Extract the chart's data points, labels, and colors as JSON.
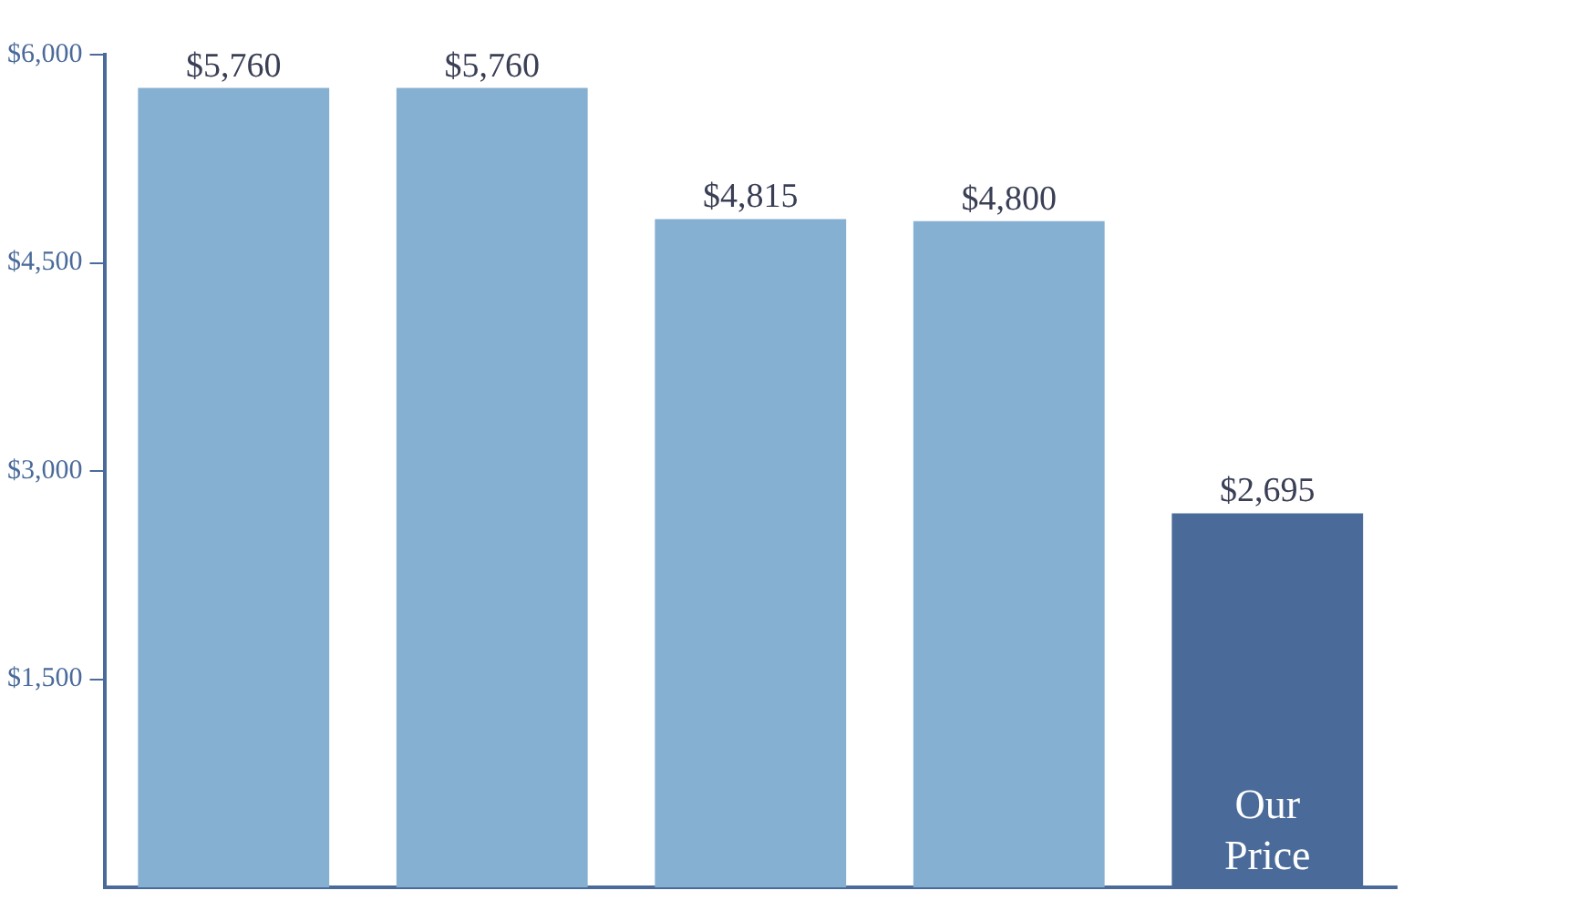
{
  "chart_data": {
    "type": "bar",
    "categories": [
      null,
      null,
      null,
      null,
      "Our Price"
    ],
    "values": [
      5760,
      5760,
      4815,
      4800,
      2695
    ],
    "colors": [
      "#85b0d2",
      "#85b0d2",
      "#85b0d2",
      "#85b0d2",
      "#4a6b9a"
    ],
    "value_labels": [
      "$5,760",
      "$5,760",
      "$4,815",
      "$4,800",
      "$2,695"
    ],
    "ylim": [
      0,
      6000
    ],
    "yticks": [
      {
        "value": 1500,
        "label": "$1,500"
      },
      {
        "value": 3000,
        "label": "$3,000"
      },
      {
        "value": 4500,
        "label": "$4,500"
      },
      {
        "value": 6000,
        "label": "$6,000"
      }
    ],
    "grid": false,
    "legend": false
  }
}
